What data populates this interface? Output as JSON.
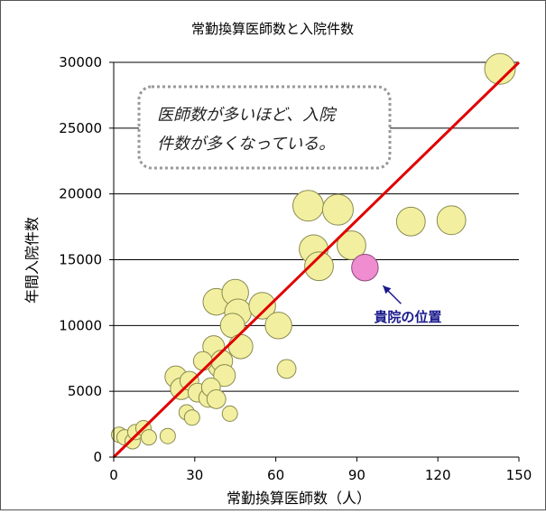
{
  "chart_data": {
    "type": "scatter",
    "title": "常勤換算医師数と入院件数",
    "xlabel": "常勤換算医師数（人）",
    "ylabel": "年間入院件数",
    "xlim": [
      0,
      150
    ],
    "ylim": [
      0,
      30000
    ],
    "xticks": [
      "0",
      "30",
      "60",
      "90",
      "120",
      "150"
    ],
    "yticks": [
      "0",
      "5000",
      "10000",
      "15000",
      "20000",
      "25000",
      "30000"
    ],
    "grid": "horizontal",
    "colors": {
      "bubble_fill": "#f2f0a0",
      "bubble_stroke": "#8a8a50",
      "highlight_fill": "#f08cd0",
      "highlight_stroke": "#8a4a78",
      "trend_line": "#e00000",
      "annotation_text": "#1a1a8c",
      "callout_border": "#999999"
    },
    "series": [
      {
        "points": [
          {
            "x": 2,
            "y": 1700,
            "size": 1
          },
          {
            "x": 4,
            "y": 1500,
            "size": 1
          },
          {
            "x": 7,
            "y": 1200,
            "size": 1
          },
          {
            "x": 8,
            "y": 1900,
            "size": 1
          },
          {
            "x": 11,
            "y": 2200,
            "size": 1
          },
          {
            "x": 13,
            "y": 1500,
            "size": 1
          },
          {
            "x": 20,
            "y": 1600,
            "size": 1
          },
          {
            "x": 23,
            "y": 6100,
            "size": 2
          },
          {
            "x": 25,
            "y": 5200,
            "size": 2
          },
          {
            "x": 27,
            "y": 3400,
            "size": 1
          },
          {
            "x": 28,
            "y": 5800,
            "size": 1.5
          },
          {
            "x": 29,
            "y": 3000,
            "size": 1
          },
          {
            "x": 31,
            "y": 4900,
            "size": 1.5
          },
          {
            "x": 33,
            "y": 7300,
            "size": 1.5
          },
          {
            "x": 35,
            "y": 4500,
            "size": 1.5
          },
          {
            "x": 36,
            "y": 5300,
            "size": 1.5
          },
          {
            "x": 37,
            "y": 8400,
            "size": 2
          },
          {
            "x": 38,
            "y": 11800,
            "size": 3
          },
          {
            "x": 38,
            "y": 4400,
            "size": 1.5
          },
          {
            "x": 39,
            "y": 6900,
            "size": 2
          },
          {
            "x": 40,
            "y": 7300,
            "size": 2
          },
          {
            "x": 41,
            "y": 6200,
            "size": 2
          },
          {
            "x": 43,
            "y": 3300,
            "size": 1
          },
          {
            "x": 44,
            "y": 10000,
            "size": 2.5
          },
          {
            "x": 45,
            "y": 12500,
            "size": 3
          },
          {
            "x": 46,
            "y": 11000,
            "size": 3
          },
          {
            "x": 47,
            "y": 8400,
            "size": 2.5
          },
          {
            "x": 55,
            "y": 11500,
            "size": 3
          },
          {
            "x": 61,
            "y": 10000,
            "size": 3
          },
          {
            "x": 64,
            "y": 6700,
            "size": 1.5
          },
          {
            "x": 72,
            "y": 19100,
            "size": 4
          },
          {
            "x": 74,
            "y": 15800,
            "size": 3.5
          },
          {
            "x": 76,
            "y": 14500,
            "size": 3.5
          },
          {
            "x": 83,
            "y": 18800,
            "size": 4
          },
          {
            "x": 88,
            "y": 16100,
            "size": 3.5
          },
          {
            "x": 110,
            "y": 17900,
            "size": 3.5
          },
          {
            "x": 125,
            "y": 18000,
            "size": 3.5
          },
          {
            "x": 143,
            "y": 29500,
            "size": 4
          }
        ]
      }
    ],
    "highlight": {
      "x": 93,
      "y": 14400,
      "size": 3,
      "label": "貴院の位置"
    },
    "trend_line": {
      "x": [
        0,
        150
      ],
      "y": [
        0,
        30000
      ]
    },
    "annotation": {
      "lines": [
        "医師数が多いほど、入院",
        "件数が多くなっている。"
      ]
    }
  }
}
